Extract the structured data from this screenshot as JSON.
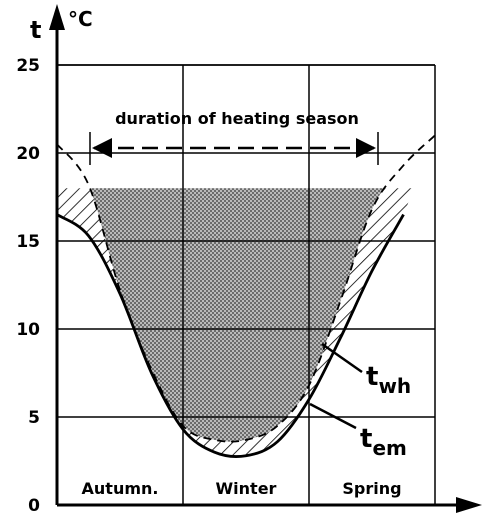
{
  "chart_data": {
    "type": "line",
    "y_label": "t",
    "y_unit": "°C",
    "annotation": "duration of heating season",
    "categories": [
      "Autumn.",
      "Winter",
      "Spring"
    ],
    "x": [
      0,
      1,
      2,
      3,
      4,
      5,
      6,
      7,
      8,
      9,
      10,
      11,
      12
    ],
    "xlim": [
      0,
      12
    ],
    "ylim": [
      0,
      25
    ],
    "yticks": [
      0,
      5,
      10,
      15,
      20,
      25
    ],
    "heating_limit": 18,
    "grid": true,
    "series": [
      {
        "name": "t",
        "subscript": "wh",
        "color": "#000000",
        "dash": false,
        "values": [
          16.5,
          15.3,
          12.0,
          7.5,
          4.3,
          3.0,
          2.8,
          3.6,
          6.0,
          9.5,
          13.3,
          16.5,
          null
        ]
      },
      {
        "name": "t",
        "subscript": "em",
        "color": "#000000",
        "dash": true,
        "values": [
          20.5,
          18.2,
          12.2,
          7.7,
          4.5,
          3.7,
          3.7,
          4.5,
          6.8,
          11.6,
          16.8,
          19.3,
          21.0
        ]
      }
    ]
  }
}
